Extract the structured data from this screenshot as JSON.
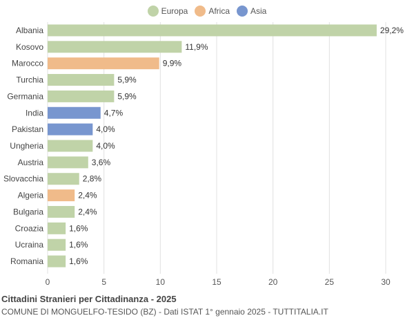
{
  "chart_data": {
    "type": "bar",
    "orientation": "horizontal",
    "title": "Cittadini Stranieri per Cittadinanza - 2025",
    "subtitle": "COMUNE DI MONGUELFO-TESIDO (BZ) - Dati ISTAT 1° gennaio 2025 - TUTTITALIA.IT",
    "legend": [
      {
        "name": "Europa",
        "color": "#c0d3a8"
      },
      {
        "name": "Africa",
        "color": "#f0bb8a"
      },
      {
        "name": "Asia",
        "color": "#7896cf"
      }
    ],
    "legend_position": "top-center",
    "categories": [
      "Albania",
      "Kosovo",
      "Marocco",
      "Turchia",
      "Germania",
      "India",
      "Pakistan",
      "Ungheria",
      "Austria",
      "Slovacchia",
      "Algeria",
      "Bulgaria",
      "Croazia",
      "Ucraina",
      "Romania"
    ],
    "values": [
      29.2,
      11.9,
      9.9,
      5.9,
      5.9,
      4.7,
      4.0,
      4.0,
      3.6,
      2.8,
      2.4,
      2.4,
      1.6,
      1.6,
      1.6
    ],
    "value_labels": [
      "29,2%",
      "11,9%",
      "9,9%",
      "5,9%",
      "5,9%",
      "4,7%",
      "4,0%",
      "4,0%",
      "3,6%",
      "2,8%",
      "2,4%",
      "2,4%",
      "1,6%",
      "1,6%",
      "1,6%"
    ],
    "groups": [
      "Europa",
      "Europa",
      "Africa",
      "Europa",
      "Europa",
      "Asia",
      "Asia",
      "Europa",
      "Europa",
      "Europa",
      "Africa",
      "Europa",
      "Europa",
      "Europa",
      "Europa"
    ],
    "xlim": [
      0,
      30
    ],
    "xticks": [
      0,
      5,
      10,
      15,
      20,
      25,
      30
    ],
    "grid": true
  }
}
